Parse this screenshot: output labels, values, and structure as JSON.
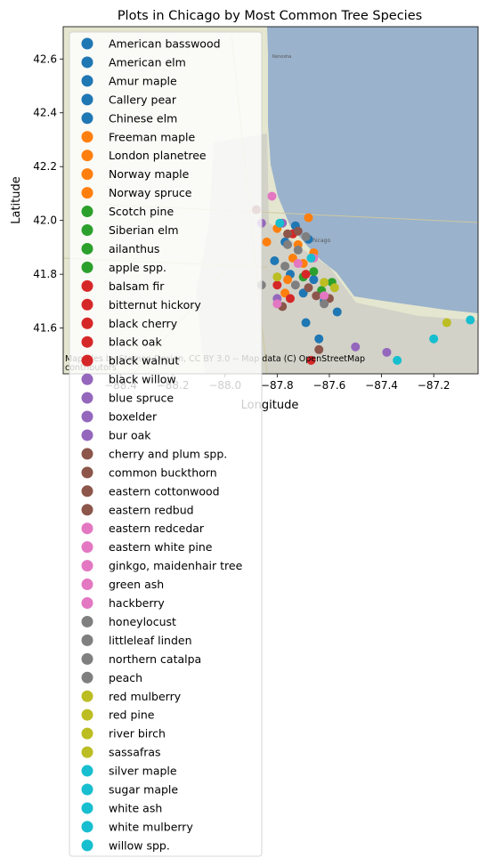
{
  "chart_data": {
    "type": "scatter",
    "title": "Plots in Chicago by Most Common Tree Species",
    "xlabel": "Longitude",
    "ylabel": "Latitude",
    "xlim": [
      -88.62,
      -87.03
    ],
    "ylim": [
      41.43,
      42.72
    ],
    "xticks": [
      -88.4,
      -88.2,
      -88.0,
      -87.8,
      -87.6,
      -87.4,
      -87.2
    ],
    "xtick_labels": [
      "−88.4",
      "−88.2",
      "−88.0",
      "−87.8",
      "−87.6",
      "−87.4",
      "−87.2"
    ],
    "yticks": [
      41.6,
      41.8,
      42.0,
      42.2,
      42.4,
      42.6
    ],
    "ytick_labels": [
      "41.6",
      "41.8",
      "42.0",
      "42.2",
      "42.4",
      "42.6"
    ],
    "grid": false,
    "legend_position": "upper-left, overflowing below plot",
    "basemap_attribution": "Map tiles by Stamen Design, CC BY 3.0 -- Map data (C) OpenStreetMap contributors",
    "map_labels": [
      "Chicago",
      "Kenosha"
    ],
    "series": [
      {
        "name": "American basswood",
        "color": "#1f77b4",
        "points": [
          [
            -87.73,
            41.98
          ],
          [
            -87.68,
            41.93
          ]
        ]
      },
      {
        "name": "American elm",
        "color": "#1f77b4",
        "points": [
          [
            -87.62,
            41.7
          ],
          [
            -87.75,
            41.8
          ]
        ]
      },
      {
        "name": "Amur maple",
        "color": "#1f77b4",
        "points": [
          [
            -87.66,
            41.78
          ],
          [
            -87.81,
            41.85
          ]
        ]
      },
      {
        "name": "Callery pear",
        "color": "#1f77b4",
        "points": [
          [
            -87.77,
            41.92
          ],
          [
            -87.69,
            41.62
          ]
        ]
      },
      {
        "name": "Chinese elm",
        "color": "#1f77b4",
        "points": [
          [
            -87.7,
            41.73
          ],
          [
            -87.57,
            41.66
          ],
          [
            -87.64,
            41.56
          ]
        ]
      },
      {
        "name": "Freeman maple",
        "color": "#ff7f0e",
        "points": [
          [
            -87.8,
            41.97
          ],
          [
            -87.74,
            41.86
          ]
        ]
      },
      {
        "name": "London planetree",
        "color": "#ff7f0e",
        "points": [
          [
            -87.7,
            41.84
          ],
          [
            -87.76,
            41.78
          ]
        ]
      },
      {
        "name": "Norway maple",
        "color": "#ff7f0e",
        "points": [
          [
            -87.68,
            42.01
          ],
          [
            -87.72,
            41.91
          ],
          [
            -87.84,
            41.92
          ]
        ]
      },
      {
        "name": "Norway spruce",
        "color": "#ff7f0e",
        "points": [
          [
            -87.77,
            41.73
          ],
          [
            -87.66,
            41.88
          ]
        ]
      },
      {
        "name": "Scotch pine",
        "color": "#2ca02c",
        "points": [
          [
            -87.66,
            41.81
          ]
        ]
      },
      {
        "name": "Siberian elm",
        "color": "#2ca02c",
        "points": [
          [
            -87.59,
            41.77
          ]
        ]
      },
      {
        "name": "ailanthus",
        "color": "#2ca02c",
        "points": [
          [
            -87.7,
            41.79
          ]
        ]
      },
      {
        "name": "apple spp.",
        "color": "#2ca02c",
        "points": [
          [
            -87.63,
            41.74
          ]
        ]
      },
      {
        "name": "balsam fir",
        "color": "#d62728",
        "points": [
          [
            -87.75,
            41.71
          ]
        ]
      },
      {
        "name": "bitternut hickory",
        "color": "#d62728",
        "points": [
          [
            -87.8,
            41.76
          ]
        ]
      },
      {
        "name": "black cherry",
        "color": "#d62728",
        "points": [
          [
            -87.69,
            41.8
          ]
        ]
      },
      {
        "name": "black oak",
        "color": "#d62728",
        "points": [
          [
            -87.67,
            41.48
          ]
        ]
      },
      {
        "name": "black walnut",
        "color": "#d62728",
        "points": [
          [
            -87.74,
            41.95
          ]
        ]
      },
      {
        "name": "black willow",
        "color": "#9467bd",
        "points": [
          [
            -87.8,
            41.71
          ]
        ]
      },
      {
        "name": "blue spruce",
        "color": "#9467bd",
        "points": [
          [
            -87.5,
            41.53
          ]
        ]
      },
      {
        "name": "boxelder",
        "color": "#9467bd",
        "points": [
          [
            -87.38,
            41.51
          ]
        ]
      },
      {
        "name": "bur oak",
        "color": "#9467bd",
        "points": [
          [
            -87.78,
            41.99
          ],
          [
            -87.86,
            41.99
          ]
        ]
      },
      {
        "name": "cherry and plum spp.",
        "color": "#8c564b",
        "points": [
          [
            -87.76,
            41.95
          ],
          [
            -87.64,
            41.52
          ]
        ]
      },
      {
        "name": "common buckthorn",
        "color": "#8c564b",
        "points": [
          [
            -87.68,
            41.75
          ],
          [
            -87.78,
            41.68
          ]
        ]
      },
      {
        "name": "eastern cottonwood",
        "color": "#8c564b",
        "points": [
          [
            -87.88,
            42.04
          ],
          [
            -87.6,
            41.71
          ]
        ]
      },
      {
        "name": "eastern redbud",
        "color": "#8c564b",
        "points": [
          [
            -87.72,
            41.96
          ],
          [
            -87.65,
            41.72
          ]
        ]
      },
      {
        "name": "eastern redcedar",
        "color": "#e377c2",
        "points": [
          [
            -87.82,
            42.09
          ]
        ]
      },
      {
        "name": "eastern white pine",
        "color": "#e377c2",
        "points": [
          [
            -87.66,
            41.86
          ]
        ]
      },
      {
        "name": "ginkgo, maidenhair tree",
        "color": "#e377c2",
        "points": [
          [
            -87.8,
            41.69
          ]
        ]
      },
      {
        "name": "green ash",
        "color": "#e377c2",
        "points": [
          [
            -87.62,
            41.72
          ]
        ]
      },
      {
        "name": "hackberry",
        "color": "#e377c2",
        "points": [
          [
            -87.72,
            41.84
          ]
        ]
      },
      {
        "name": "honeylocust",
        "color": "#7f7f7f",
        "points": [
          [
            -87.72,
            41.89
          ],
          [
            -87.76,
            41.91
          ]
        ]
      },
      {
        "name": "littleleaf linden",
        "color": "#7f7f7f",
        "points": [
          [
            -87.69,
            41.94
          ],
          [
            -87.77,
            41.83
          ]
        ]
      },
      {
        "name": "northern catalpa",
        "color": "#7f7f7f",
        "points": [
          [
            -87.62,
            41.69
          ],
          [
            -87.73,
            41.76
          ]
        ]
      },
      {
        "name": "peach",
        "color": "#7f7f7f",
        "points": [
          [
            -87.86,
            41.76
          ]
        ]
      },
      {
        "name": "red mulberry",
        "color": "#bcbd22",
        "points": [
          [
            -87.15,
            41.62
          ]
        ]
      },
      {
        "name": "red pine",
        "color": "#bcbd22",
        "points": [
          [
            -87.58,
            41.75
          ]
        ]
      },
      {
        "name": "river birch",
        "color": "#bcbd22",
        "points": [
          [
            -87.62,
            41.77
          ]
        ]
      },
      {
        "name": "sassafras",
        "color": "#bcbd22",
        "points": [
          [
            -87.8,
            41.79
          ]
        ]
      },
      {
        "name": "silver maple",
        "color": "#17becf",
        "points": [
          [
            -87.06,
            41.63
          ]
        ]
      },
      {
        "name": "sugar maple",
        "color": "#17becf",
        "points": [
          [
            -87.2,
            41.56
          ]
        ]
      },
      {
        "name": "white ash",
        "color": "#17becf",
        "points": [
          [
            -87.79,
            41.99
          ]
        ]
      },
      {
        "name": "white mulberry",
        "color": "#17becf",
        "points": [
          [
            -87.67,
            41.86
          ]
        ]
      },
      {
        "name": "willow spp.",
        "color": "#17becf",
        "points": [
          [
            -87.34,
            41.48
          ]
        ]
      }
    ]
  }
}
